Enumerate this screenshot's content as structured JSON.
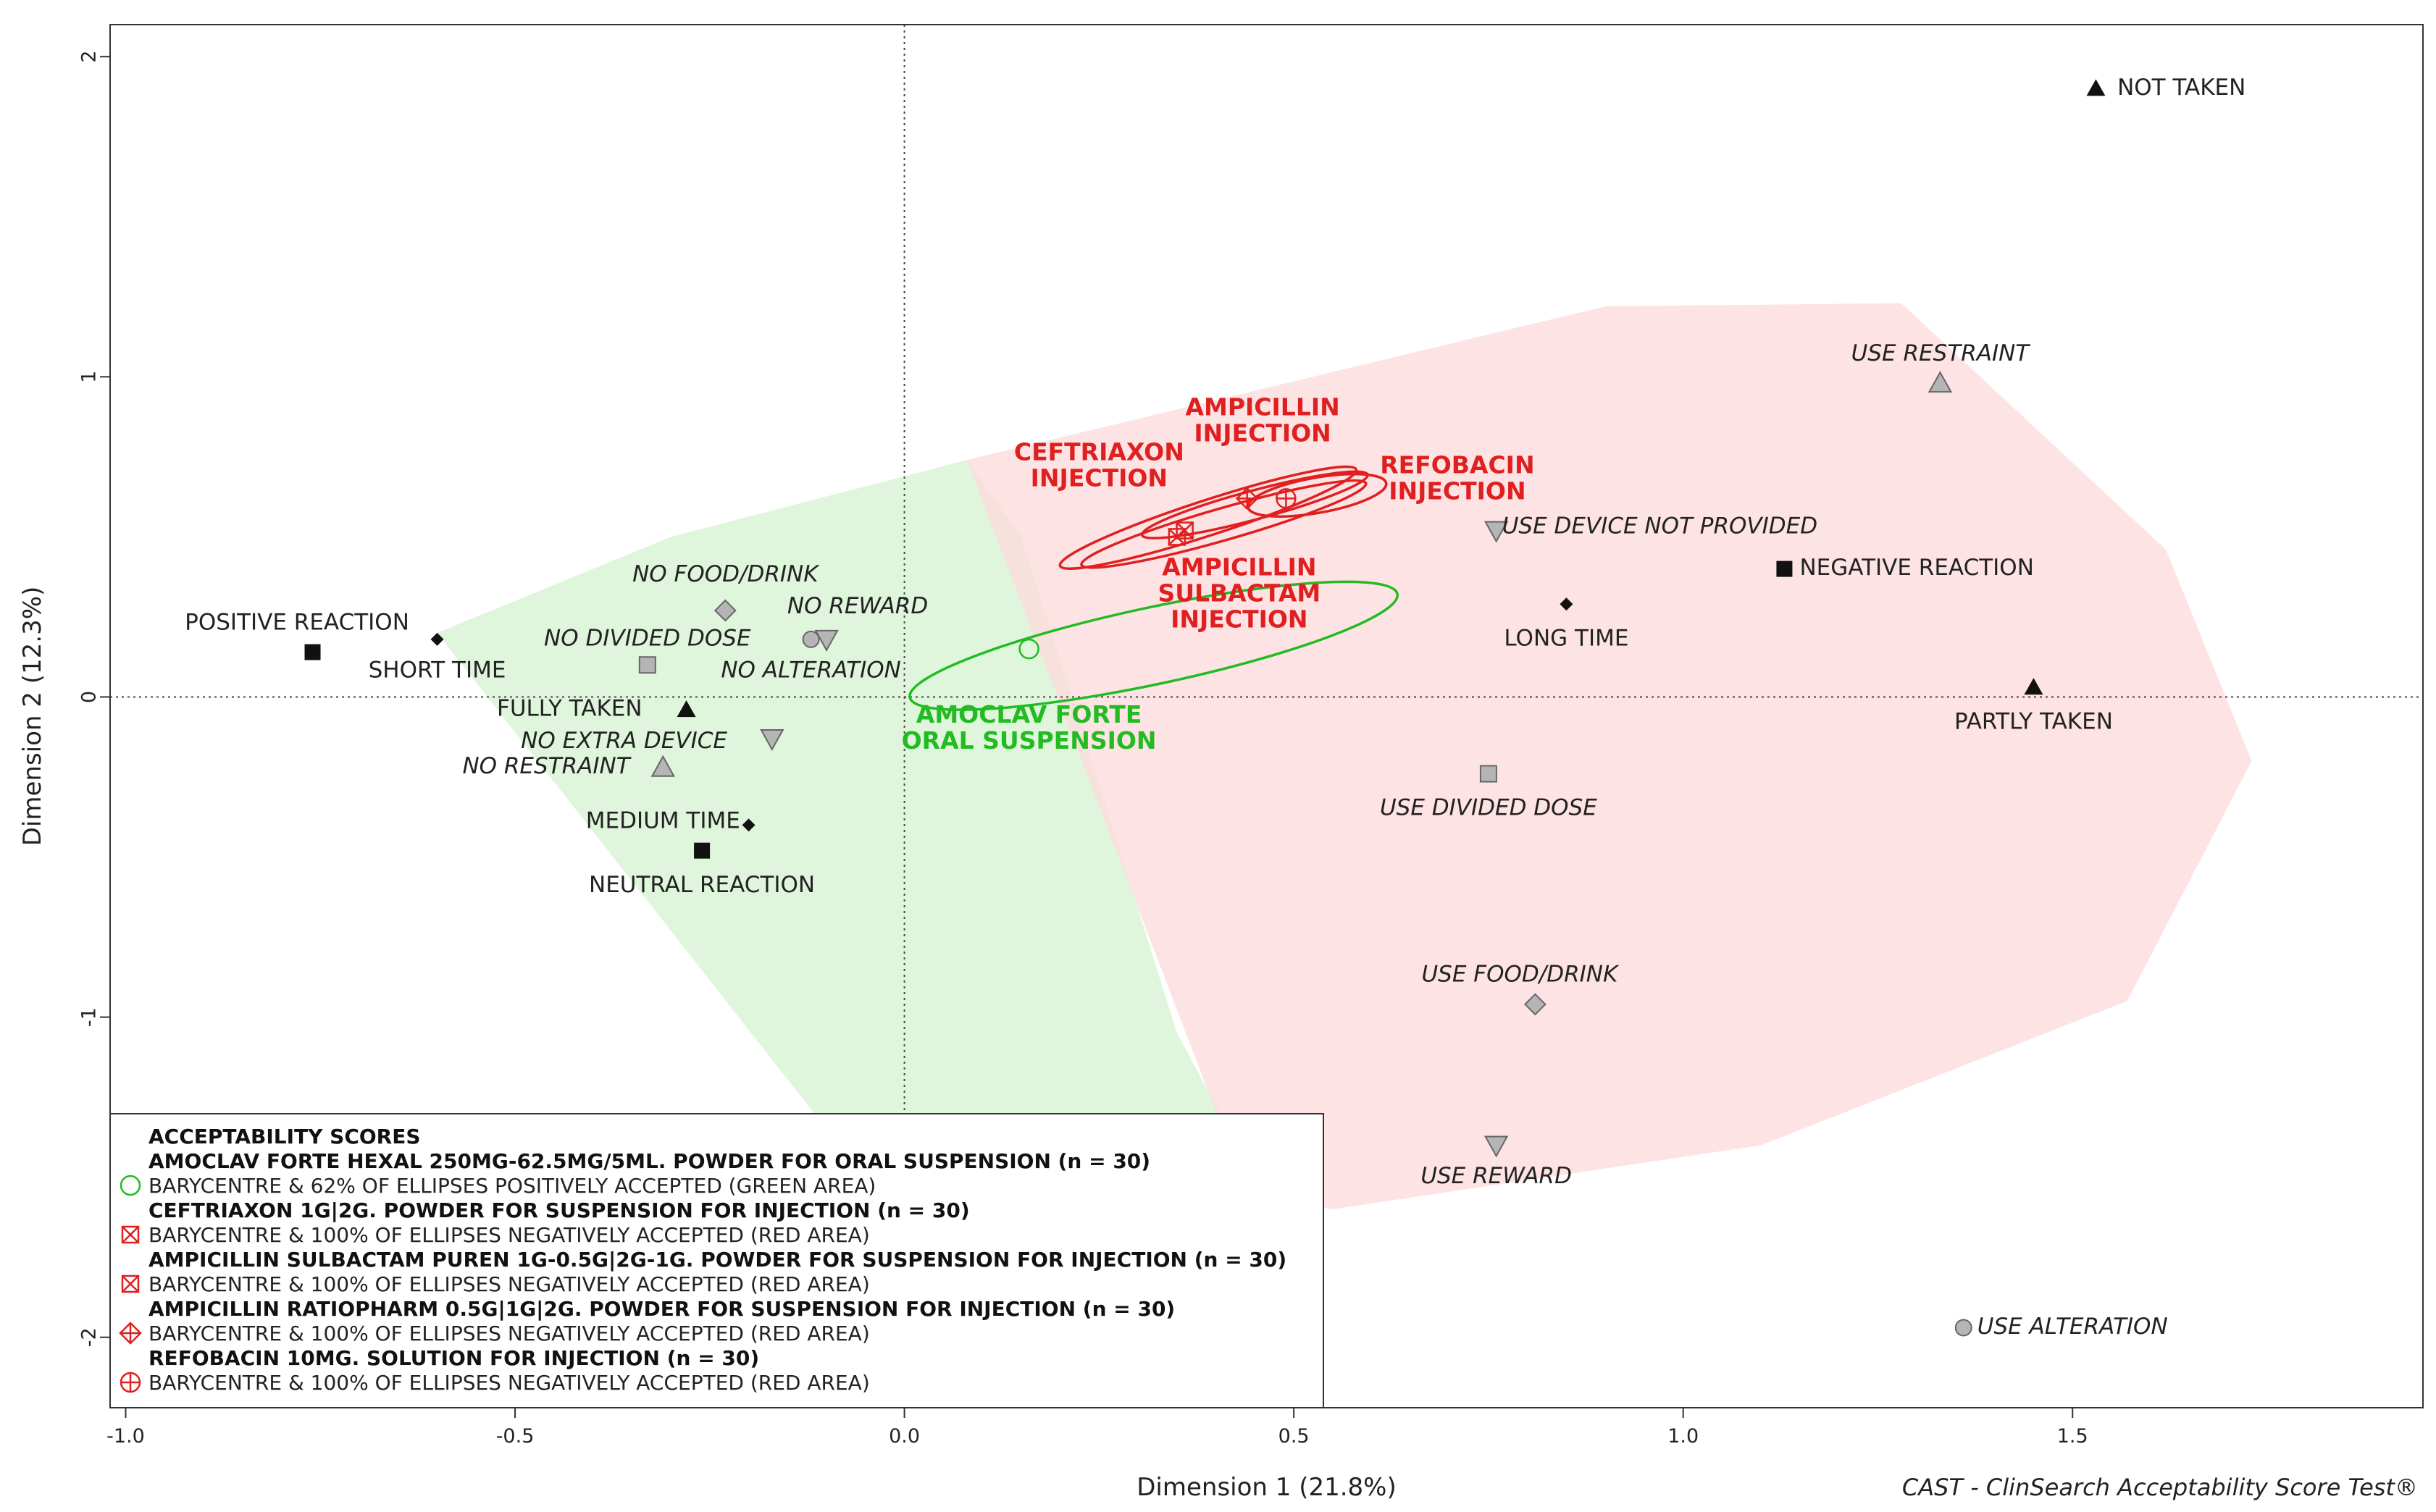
{
  "chart_data": {
    "type": "scatter",
    "xlabel": "Dimension 1 (21.8%)",
    "ylabel": "Dimension 2 (12.3%)",
    "xlim": [
      -1.02,
      1.95
    ],
    "ylim": [
      -2.22,
      2.1
    ],
    "xticks": [
      {
        "value": -1.0,
        "label": "-1.0"
      },
      {
        "value": -0.5,
        "label": "-0.5"
      },
      {
        "value": 0.0,
        "label": "0.0"
      },
      {
        "value": 0.5,
        "label": "0.5"
      },
      {
        "value": 1.0,
        "label": "1.0"
      },
      {
        "value": 1.5,
        "label": "1.5"
      }
    ],
    "yticks": [
      {
        "value": -2,
        "label": "-2"
      },
      {
        "value": -1,
        "label": "-1"
      },
      {
        "value": 0,
        "label": "0"
      },
      {
        "value": 1,
        "label": "1"
      },
      {
        "value": 2,
        "label": "2"
      }
    ],
    "credit": "CAST - ClinSearch Acceptability Score Test®",
    "areas": [
      {
        "name": "positive-area",
        "color": "#d9f5d6",
        "points": [
          [
            -0.6,
            0.2
          ],
          [
            -0.3,
            0.5
          ],
          [
            0.08,
            0.74
          ],
          [
            0.15,
            0.5
          ],
          [
            0.35,
            -1.05
          ],
          [
            0.45,
            -1.5
          ],
          [
            -0.1,
            -1.35
          ]
        ]
      },
      {
        "name": "negative-area",
        "color": "#fcdcdc",
        "points": [
          [
            0.08,
            0.74
          ],
          [
            0.9,
            1.22
          ],
          [
            1.28,
            1.23
          ],
          [
            1.62,
            0.46
          ],
          [
            1.73,
            -0.2
          ],
          [
            1.57,
            -0.95
          ],
          [
            1.1,
            -1.4
          ],
          [
            0.55,
            -1.6
          ],
          [
            0.44,
            -1.55
          ]
        ]
      }
    ],
    "categories": [
      {
        "label": "POSITIVE REACTION",
        "shape": "square",
        "x": -0.76,
        "y": 0.14,
        "lx": -0.78,
        "ly": 0.23,
        "italic": false
      },
      {
        "label": "SHORT TIME",
        "shape": "diamond",
        "x": -0.6,
        "y": 0.18,
        "lx": -0.6,
        "ly": 0.08,
        "italic": false
      },
      {
        "label": "NO FOOD/DRINK",
        "shape": "diamond-grey",
        "x": -0.23,
        "y": 0.27,
        "lx": -0.23,
        "ly": 0.38,
        "italic": true
      },
      {
        "label": "NO REWARD",
        "shape": "triangle-down-grey",
        "x": -0.1,
        "y": 0.18,
        "lx": -0.06,
        "ly": 0.28,
        "italic": true
      },
      {
        "label": "NO DIVIDED DOSE",
        "shape": "square-grey",
        "x": -0.33,
        "y": 0.1,
        "lx": -0.33,
        "ly": 0.18,
        "italic": true
      },
      {
        "label": "NO ALTERATION",
        "shape": "circle-grey",
        "x": -0.12,
        "y": 0.18,
        "lx": -0.12,
        "ly": 0.08,
        "italic": true
      },
      {
        "label": "FULLY TAKEN",
        "shape": "triangle-up",
        "x": -0.28,
        "y": -0.04,
        "lx": -0.43,
        "ly": -0.04,
        "italic": false
      },
      {
        "label": "NO EXTRA DEVICE",
        "shape": "triangle-down-grey",
        "x": -0.17,
        "y": -0.13,
        "lx": -0.36,
        "ly": -0.14,
        "italic": true
      },
      {
        "label": "NO RESTRAINT",
        "shape": "triangle-up-grey",
        "x": -0.31,
        "y": -0.22,
        "lx": -0.46,
        "ly": -0.22,
        "italic": true
      },
      {
        "label": "MEDIUM TIME",
        "shape": "diamond",
        "x": -0.2,
        "y": -0.4,
        "lx": -0.31,
        "ly": -0.39,
        "italic": false
      },
      {
        "label": "NEUTRAL REACTION",
        "shape": "square",
        "x": -0.26,
        "y": -0.48,
        "lx": -0.26,
        "ly": -0.59,
        "italic": false
      },
      {
        "label": "NOT TAKEN",
        "shape": "triangle-up",
        "x": 1.53,
        "y": 1.9,
        "lx": 1.64,
        "ly": 1.9,
        "italic": false
      },
      {
        "label": "USE RESTRAINT",
        "shape": "triangle-up-grey",
        "x": 1.33,
        "y": 0.98,
        "lx": 1.33,
        "ly": 1.07,
        "italic": true
      },
      {
        "label": "USE DEVICE NOT PROVIDED",
        "shape": "triangle-down-grey",
        "x": 0.76,
        "y": 0.52,
        "lx": 0.97,
        "ly": 0.53,
        "italic": true
      },
      {
        "label": "NEGATIVE REACTION",
        "shape": "square",
        "x": 1.13,
        "y": 0.4,
        "lx": 1.3,
        "ly": 0.4,
        "italic": false
      },
      {
        "label": "LONG TIME",
        "shape": "diamond",
        "x": 0.85,
        "y": 0.29,
        "lx": 0.85,
        "ly": 0.18,
        "italic": false
      },
      {
        "label": "PARTLY TAKEN",
        "shape": "triangle-up",
        "x": 1.45,
        "y": 0.03,
        "lx": 1.45,
        "ly": -0.08,
        "italic": false
      },
      {
        "label": "USE DIVIDED DOSE",
        "shape": "square-grey",
        "x": 0.75,
        "y": -0.24,
        "lx": 0.75,
        "ly": -0.35,
        "italic": true
      },
      {
        "label": "USE FOOD/DRINK",
        "shape": "diamond-grey",
        "x": 0.81,
        "y": -0.96,
        "lx": 0.79,
        "ly": -0.87,
        "italic": true
      },
      {
        "label": "USE REWARD",
        "shape": "triangle-down-grey",
        "x": 0.76,
        "y": -1.4,
        "lx": 0.76,
        "ly": -1.5,
        "italic": true
      },
      {
        "label": "USE ALTERATION",
        "shape": "circle-grey",
        "x": 1.36,
        "y": -1.97,
        "lx": 1.5,
        "ly": -1.97,
        "italic": true
      }
    ],
    "products": [
      {
        "name": "amoclav",
        "label_lines": [
          "AMOCLAV FORTE",
          "ORAL SUSPENSION"
        ],
        "color": "#22bb22",
        "marker": "circle",
        "x": 0.16,
        "y": 0.15,
        "ellipse": {
          "cx": 0.32,
          "cy": 0.16,
          "rx": 0.32,
          "ry": 0.12,
          "rot": 12
        },
        "lx": 0.16,
        "ly": -0.1
      },
      {
        "name": "ceftriaxon",
        "label_lines": [
          "CEFTRIAXON",
          "INJECTION"
        ],
        "color": "#e02020",
        "marker": "box-x",
        "x": 0.36,
        "y": 0.52,
        "ellipse": {
          "cx": 0.39,
          "cy": 0.56,
          "rx": 0.2,
          "ry": 0.055,
          "rot": 18
        },
        "lx": 0.25,
        "ly": 0.72
      },
      {
        "name": "ampicillin-sulbactam",
        "label_lines": [
          "AMPICILLIN",
          "SULBACTAM",
          "INJECTION"
        ],
        "color": "#e02020",
        "marker": "box-x",
        "x": 0.35,
        "y": 0.5,
        "ellipse": {
          "cx": 0.41,
          "cy": 0.54,
          "rx": 0.19,
          "ry": 0.05,
          "rot": 16
        },
        "lx": 0.43,
        "ly": 0.32
      },
      {
        "name": "ampicillin",
        "label_lines": [
          "AMPICILLIN",
          "INJECTION"
        ],
        "color": "#e02020",
        "marker": "diamond-plus",
        "x": 0.44,
        "y": 0.62,
        "ellipse": {
          "cx": 0.45,
          "cy": 0.6,
          "rx": 0.15,
          "ry": 0.045,
          "rot": 15
        },
        "lx": 0.46,
        "ly": 0.86
      },
      {
        "name": "refobacin",
        "label_lines": [
          "REFOBACIN",
          "INJECTION"
        ],
        "color": "#e02020",
        "marker": "circle-plus",
        "x": 0.49,
        "y": 0.62,
        "ellipse": {
          "cx": 0.53,
          "cy": 0.63,
          "rx": 0.09,
          "ry": 0.055,
          "rot": 10
        },
        "lx": 0.71,
        "ly": 0.68
      }
    ],
    "legend": {
      "title": "ACCEPTABILITY SCORES",
      "entries": [
        {
          "product": "AMOCLAV FORTE HEXAL 250MG-62.5MG/5ML. POWDER FOR ORAL SUSPENSION (n = 30)",
          "desc": "BARYCENTRE & 62% OF ELLIPSES POSITIVELY ACCEPTED (GREEN AREA)",
          "marker": "circle",
          "color": "#22bb22"
        },
        {
          "product": "CEFTRIAXON 1G|2G. POWDER FOR SUSPENSION FOR INJECTION (n = 30)",
          "desc": "BARYCENTRE & 100% OF ELLIPSES NEGATIVELY ACCEPTED (RED AREA)",
          "marker": "box-x",
          "color": "#e02020"
        },
        {
          "product": "AMPICILLIN SULBACTAM PUREN 1G-0.5G|2G-1G. POWDER FOR SUSPENSION FOR INJECTION (n = 30)",
          "desc": "BARYCENTRE & 100% OF ELLIPSES NEGATIVELY ACCEPTED (RED AREA)",
          "marker": "box-x",
          "color": "#e02020"
        },
        {
          "product": "AMPICILLIN RATIOPHARM 0.5G|1G|2G. POWDER FOR SUSPENSION FOR INJECTION (n = 30)",
          "desc": "BARYCENTRE & 100% OF ELLIPSES NEGATIVELY ACCEPTED (RED AREA)",
          "marker": "diamond-plus",
          "color": "#e02020"
        },
        {
          "product": "REFOBACIN 10MG. SOLUTION FOR INJECTION (n = 30)",
          "desc": "BARYCENTRE & 100% OF ELLIPSES NEGATIVELY ACCEPTED (RED AREA)",
          "marker": "circle-plus",
          "color": "#e02020"
        }
      ]
    }
  }
}
